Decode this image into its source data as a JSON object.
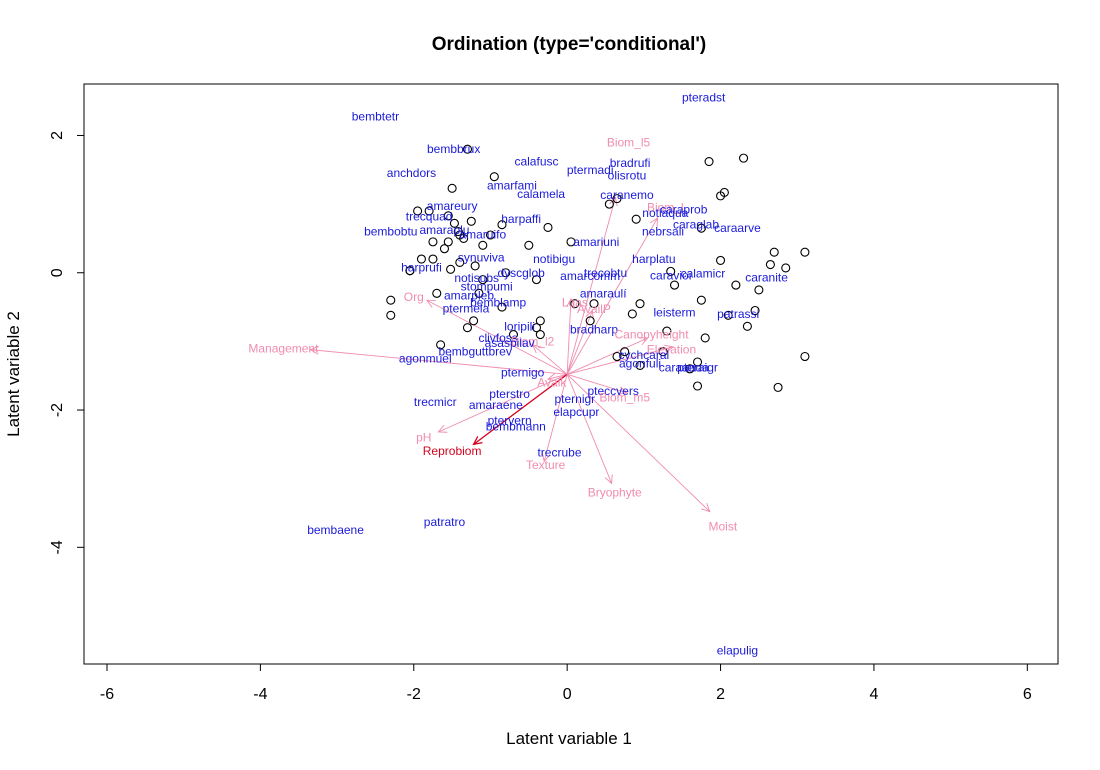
{
  "chart_data": {
    "type": "scatter",
    "title": "Ordination (type='conditional')",
    "xlabel": "Latent variable 1",
    "ylabel": "Latent variable 2",
    "xlim": [
      -6.3,
      6.4
    ],
    "ylim": [
      -5.7,
      2.75
    ],
    "xticks": [
      -6,
      -4,
      -2,
      0,
      2,
      4,
      6
    ],
    "yticks": [
      -4,
      -2,
      0,
      2
    ],
    "xtick_labels": [
      "-6",
      "-4",
      "-2",
      "0",
      "2",
      "4",
      "6"
    ],
    "ytick_labels": [
      "-4",
      "-2",
      "0",
      "2"
    ],
    "grid": false,
    "colors": {
      "sites": "#000000",
      "species": "#1a1adb",
      "env": "#f08cb0",
      "env_main": "#d6001c"
    },
    "sites": [
      [
        -2.05,
        0.03
      ],
      [
        -2.05,
        0.03
      ],
      [
        -2.3,
        -0.4
      ],
      [
        -2.3,
        -0.62
      ],
      [
        -1.95,
        0.9
      ],
      [
        -1.8,
        0.9
      ],
      [
        -1.55,
        0.83
      ],
      [
        -1.5,
        1.23
      ],
      [
        -1.47,
        0.72
      ],
      [
        -1.42,
        0.6
      ],
      [
        -1.4,
        0.55
      ],
      [
        -1.35,
        0.5
      ],
      [
        -1.25,
        0.75
      ],
      [
        -1.1,
        0.4
      ],
      [
        -1.0,
        0.55
      ],
      [
        -0.95,
        1.4
      ],
      [
        -1.3,
        1.8
      ],
      [
        -0.85,
        0.7
      ],
      [
        -0.5,
        0.4
      ],
      [
        -0.25,
        0.66
      ],
      [
        0.05,
        0.45
      ],
      [
        -1.9,
        0.2
      ],
      [
        -1.75,
        0.2
      ],
      [
        -1.6,
        0.35
      ],
      [
        -1.55,
        0.45
      ],
      [
        -1.75,
        0.45
      ],
      [
        -1.52,
        0.05
      ],
      [
        -1.4,
        0.15
      ],
      [
        -1.2,
        0.1
      ],
      [
        -1.1,
        -0.1
      ],
      [
        -1.15,
        -0.3
      ],
      [
        -0.8,
        0.0
      ],
      [
        -0.85,
        -0.5
      ],
      [
        -0.7,
        -0.9
      ],
      [
        -0.4,
        -0.8
      ],
      [
        -0.35,
        -0.7
      ],
      [
        -0.35,
        -0.9
      ],
      [
        -1.22,
        -0.7
      ],
      [
        -1.3,
        -0.8
      ],
      [
        -1.65,
        -1.05
      ],
      [
        -1.7,
        -0.3
      ],
      [
        -0.4,
        -0.1
      ],
      [
        0.1,
        -0.45
      ],
      [
        0.3,
        -0.7
      ],
      [
        0.35,
        -0.45
      ],
      [
        0.55,
        1.0
      ],
      [
        0.65,
        1.08
      ],
      [
        0.9,
        0.78
      ],
      [
        0.95,
        -0.45
      ],
      [
        0.85,
        -0.6
      ],
      [
        0.95,
        -1.35
      ],
      [
        1.25,
        -1.15
      ],
      [
        1.3,
        -0.85
      ],
      [
        1.35,
        0.02
      ],
      [
        1.4,
        -0.18
      ],
      [
        1.75,
        -0.4
      ],
      [
        1.8,
        -0.95
      ],
      [
        1.85,
        1.62
      ],
      [
        1.75,
        0.65
      ],
      [
        2.0,
        1.12
      ],
      [
        2.05,
        1.17
      ],
      [
        2.3,
        1.67
      ],
      [
        2.0,
        0.18
      ],
      [
        2.2,
        -0.18
      ],
      [
        2.5,
        -0.25
      ],
      [
        2.45,
        -0.55
      ],
      [
        2.35,
        -0.78
      ],
      [
        2.1,
        -0.62
      ],
      [
        2.65,
        0.12
      ],
      [
        2.7,
        0.3
      ],
      [
        2.85,
        0.07
      ],
      [
        3.1,
        0.3
      ],
      [
        3.1,
        -1.22
      ],
      [
        2.75,
        -1.67
      ],
      [
        1.7,
        -1.65
      ],
      [
        1.7,
        -1.3
      ],
      [
        1.6,
        -1.4
      ],
      [
        0.75,
        -1.15
      ],
      [
        0.65,
        -1.22
      ]
    ],
    "species": [
      {
        "name": "pteradst",
        "x": 1.78,
        "y": 2.55
      },
      {
        "name": "bembtetr",
        "x": -2.5,
        "y": 2.28
      },
      {
        "name": "bembbrux",
        "x": -1.48,
        "y": 1.8
      },
      {
        "name": "Biom_l5",
        "x": 0.8,
        "y": 1.9
      },
      {
        "name": "calafusc",
        "x": -0.4,
        "y": 1.62
      },
      {
        "name": "bradrufi",
        "x": 0.82,
        "y": 1.6
      },
      {
        "name": "ptermadi",
        "x": 0.3,
        "y": 1.5
      },
      {
        "name": "olisrotu",
        "x": 0.78,
        "y": 1.42
      },
      {
        "name": "anchdors",
        "x": -2.03,
        "y": 1.45
      },
      {
        "name": "amarfami",
        "x": -0.72,
        "y": 1.27
      },
      {
        "name": "calamela",
        "x": -0.34,
        "y": 1.15
      },
      {
        "name": "caranemo",
        "x": 0.78,
        "y": 1.13
      },
      {
        "name": "amareury",
        "x": -1.5,
        "y": 0.97
      },
      {
        "name": "Biom_l",
        "x": 1.28,
        "y": 0.95
      },
      {
        "name": "caraprob",
        "x": 1.52,
        "y": 0.92
      },
      {
        "name": "notiaqua",
        "x": 1.28,
        "y": 0.87
      },
      {
        "name": "trecquad",
        "x": -1.8,
        "y": 0.82
      },
      {
        "name": "harpaffi",
        "x": -0.6,
        "y": 0.78
      },
      {
        "name": "caraglab",
        "x": 1.68,
        "y": 0.7
      },
      {
        "name": "caraarve",
        "x": 2.22,
        "y": 0.65
      },
      {
        "name": "bembobtu",
        "x": -2.3,
        "y": 0.6
      },
      {
        "name": "amaraplu",
        "x": -1.6,
        "y": 0.62
      },
      {
        "name": "amaruifo",
        "x": -1.1,
        "y": 0.56
      },
      {
        "name": "nebrsali",
        "x": 1.25,
        "y": 0.6
      },
      {
        "name": "amariuni",
        "x": 0.38,
        "y": 0.45
      },
      {
        "name": "notibigu",
        "x": -0.17,
        "y": 0.2
      },
      {
        "name": "harplatu",
        "x": 1.13,
        "y": 0.2
      },
      {
        "name": "synuviva",
        "x": -1.12,
        "y": 0.22
      },
      {
        "name": "harprufi",
        "x": -1.9,
        "y": 0.08
      },
      {
        "name": "dyscglob",
        "x": -0.6,
        "y": 0.0
      },
      {
        "name": "calamicr",
        "x": 1.77,
        "y": -0.01
      },
      {
        "name": "caravioi",
        "x": 1.35,
        "y": -0.04
      },
      {
        "name": "amarcomm",
        "x": 0.3,
        "y": -0.05
      },
      {
        "name": "trecobtu",
        "x": 0.5,
        "y": 0.0
      },
      {
        "name": "notisubs",
        "x": -1.18,
        "y": -0.08
      },
      {
        "name": "caranite",
        "x": 2.6,
        "y": -0.07
      },
      {
        "name": "stompumi",
        "x": -1.05,
        "y": -0.2
      },
      {
        "name": "amaraulí",
        "x": 0.47,
        "y": -0.3
      },
      {
        "name": "Org",
        "x": -2.0,
        "y": -0.35
      },
      {
        "name": "amarpleb",
        "x": -1.28,
        "y": -0.33
      },
      {
        "name": "bemblamp",
        "x": -0.9,
        "y": -0.43
      },
      {
        "name": "Lqas",
        "x": 0.1,
        "y": -0.43
      },
      {
        "name": "AvailP",
        "x": 0.35,
        "y": -0.53
      },
      {
        "name": "ptermela",
        "x": -1.32,
        "y": -0.52
      },
      {
        "name": "leisterm",
        "x": 1.4,
        "y": -0.58
      },
      {
        "name": "patrassi",
        "x": 2.23,
        "y": -0.6
      },
      {
        "name": "loripili",
        "x": -0.62,
        "y": -0.78
      },
      {
        "name": "bradharp",
        "x": 0.35,
        "y": -0.83
      },
      {
        "name": "Canopyheight",
        "x": 1.1,
        "y": -0.9
      },
      {
        "name": "clivfoss",
        "x": -0.9,
        "y": -0.95
      },
      {
        "name": "Biom_l2",
        "x": -0.45,
        "y": -1.0
      },
      {
        "name": "asaspilav",
        "x": -0.75,
        "y": -1.02
      },
      {
        "name": "Management",
        "x": -3.7,
        "y": -1.1
      },
      {
        "name": "Elevation",
        "x": 1.36,
        "y": -1.12
      },
      {
        "name": "bembguttbrev",
        "x": -1.2,
        "y": -1.15
      },
      {
        "name": "agonmuel",
        "x": -1.85,
        "y": -1.25
      },
      {
        "name": "cychcaral",
        "x": 1.0,
        "y": -1.2
      },
      {
        "name": "agonfuli",
        "x": 0.95,
        "y": -1.32
      },
      {
        "name": "caraanua",
        "x": 1.52,
        "y": -1.38
      },
      {
        "name": "pteraigr",
        "x": 1.7,
        "y": -1.38
      },
      {
        "name": "pternigo",
        "x": -0.58,
        "y": -1.45
      },
      {
        "name": "Avalk",
        "x": -0.2,
        "y": -1.6
      },
      {
        "name": "pterstro",
        "x": -0.75,
        "y": -1.77
      },
      {
        "name": "pteccvers",
        "x": 0.6,
        "y": -1.72
      },
      {
        "name": "Biom_m5",
        "x": 0.75,
        "y": -1.82
      },
      {
        "name": "pternigr",
        "x": 0.1,
        "y": -1.84
      },
      {
        "name": "trecmicr",
        "x": -1.72,
        "y": -1.88
      },
      {
        "name": "amaraene",
        "x": -0.93,
        "y": -1.93
      },
      {
        "name": "elapcupr",
        "x": 0.12,
        "y": -2.03
      },
      {
        "name": "ptervern",
        "x": -0.75,
        "y": -2.15
      },
      {
        "name": "bembmann",
        "x": -0.67,
        "y": -2.24
      },
      {
        "name": "pH",
        "x": -1.87,
        "y": -2.4
      },
      {
        "name": "Reprobiom",
        "x": -1.5,
        "y": -2.6
      },
      {
        "name": "trecrube",
        "x": -0.1,
        "y": -2.62
      },
      {
        "name": "Texture",
        "x": -0.28,
        "y": -2.8
      },
      {
        "name": "Bryophyte",
        "x": 0.62,
        "y": -3.2
      },
      {
        "name": "Moist",
        "x": 2.03,
        "y": -3.7
      },
      {
        "name": "bembaene",
        "x": -3.02,
        "y": -3.75
      },
      {
        "name": "patratro",
        "x": -1.6,
        "y": -3.63
      },
      {
        "name": "elapulig",
        "x": 2.22,
        "y": -5.5
      }
    ],
    "arrows": {
      "origin": [
        0.0,
        -1.48
      ],
      "tips": [
        {
          "x": 0.63,
          "y": 1.1
        },
        {
          "x": 1.18,
          "y": 0.8
        },
        {
          "x": -1.83,
          "y": -0.4
        },
        {
          "x": 0.05,
          "y": -0.38
        },
        {
          "x": 0.33,
          "y": -0.55
        },
        {
          "x": 1.05,
          "y": -0.95
        },
        {
          "x": -3.35,
          "y": -1.12
        },
        {
          "x": 1.38,
          "y": -1.08
        },
        {
          "x": -0.45,
          "y": -1.05
        },
        {
          "x": -0.25,
          "y": -1.55
        },
        {
          "x": 0.78,
          "y": -1.75
        },
        {
          "x": -1.68,
          "y": -2.32
        },
        {
          "x": -1.22,
          "y": -2.5
        },
        {
          "x": -0.3,
          "y": -2.75
        },
        {
          "x": 0.58,
          "y": -3.07
        },
        {
          "x": 1.86,
          "y": -3.48
        }
      ],
      "main_index": 12
    }
  }
}
